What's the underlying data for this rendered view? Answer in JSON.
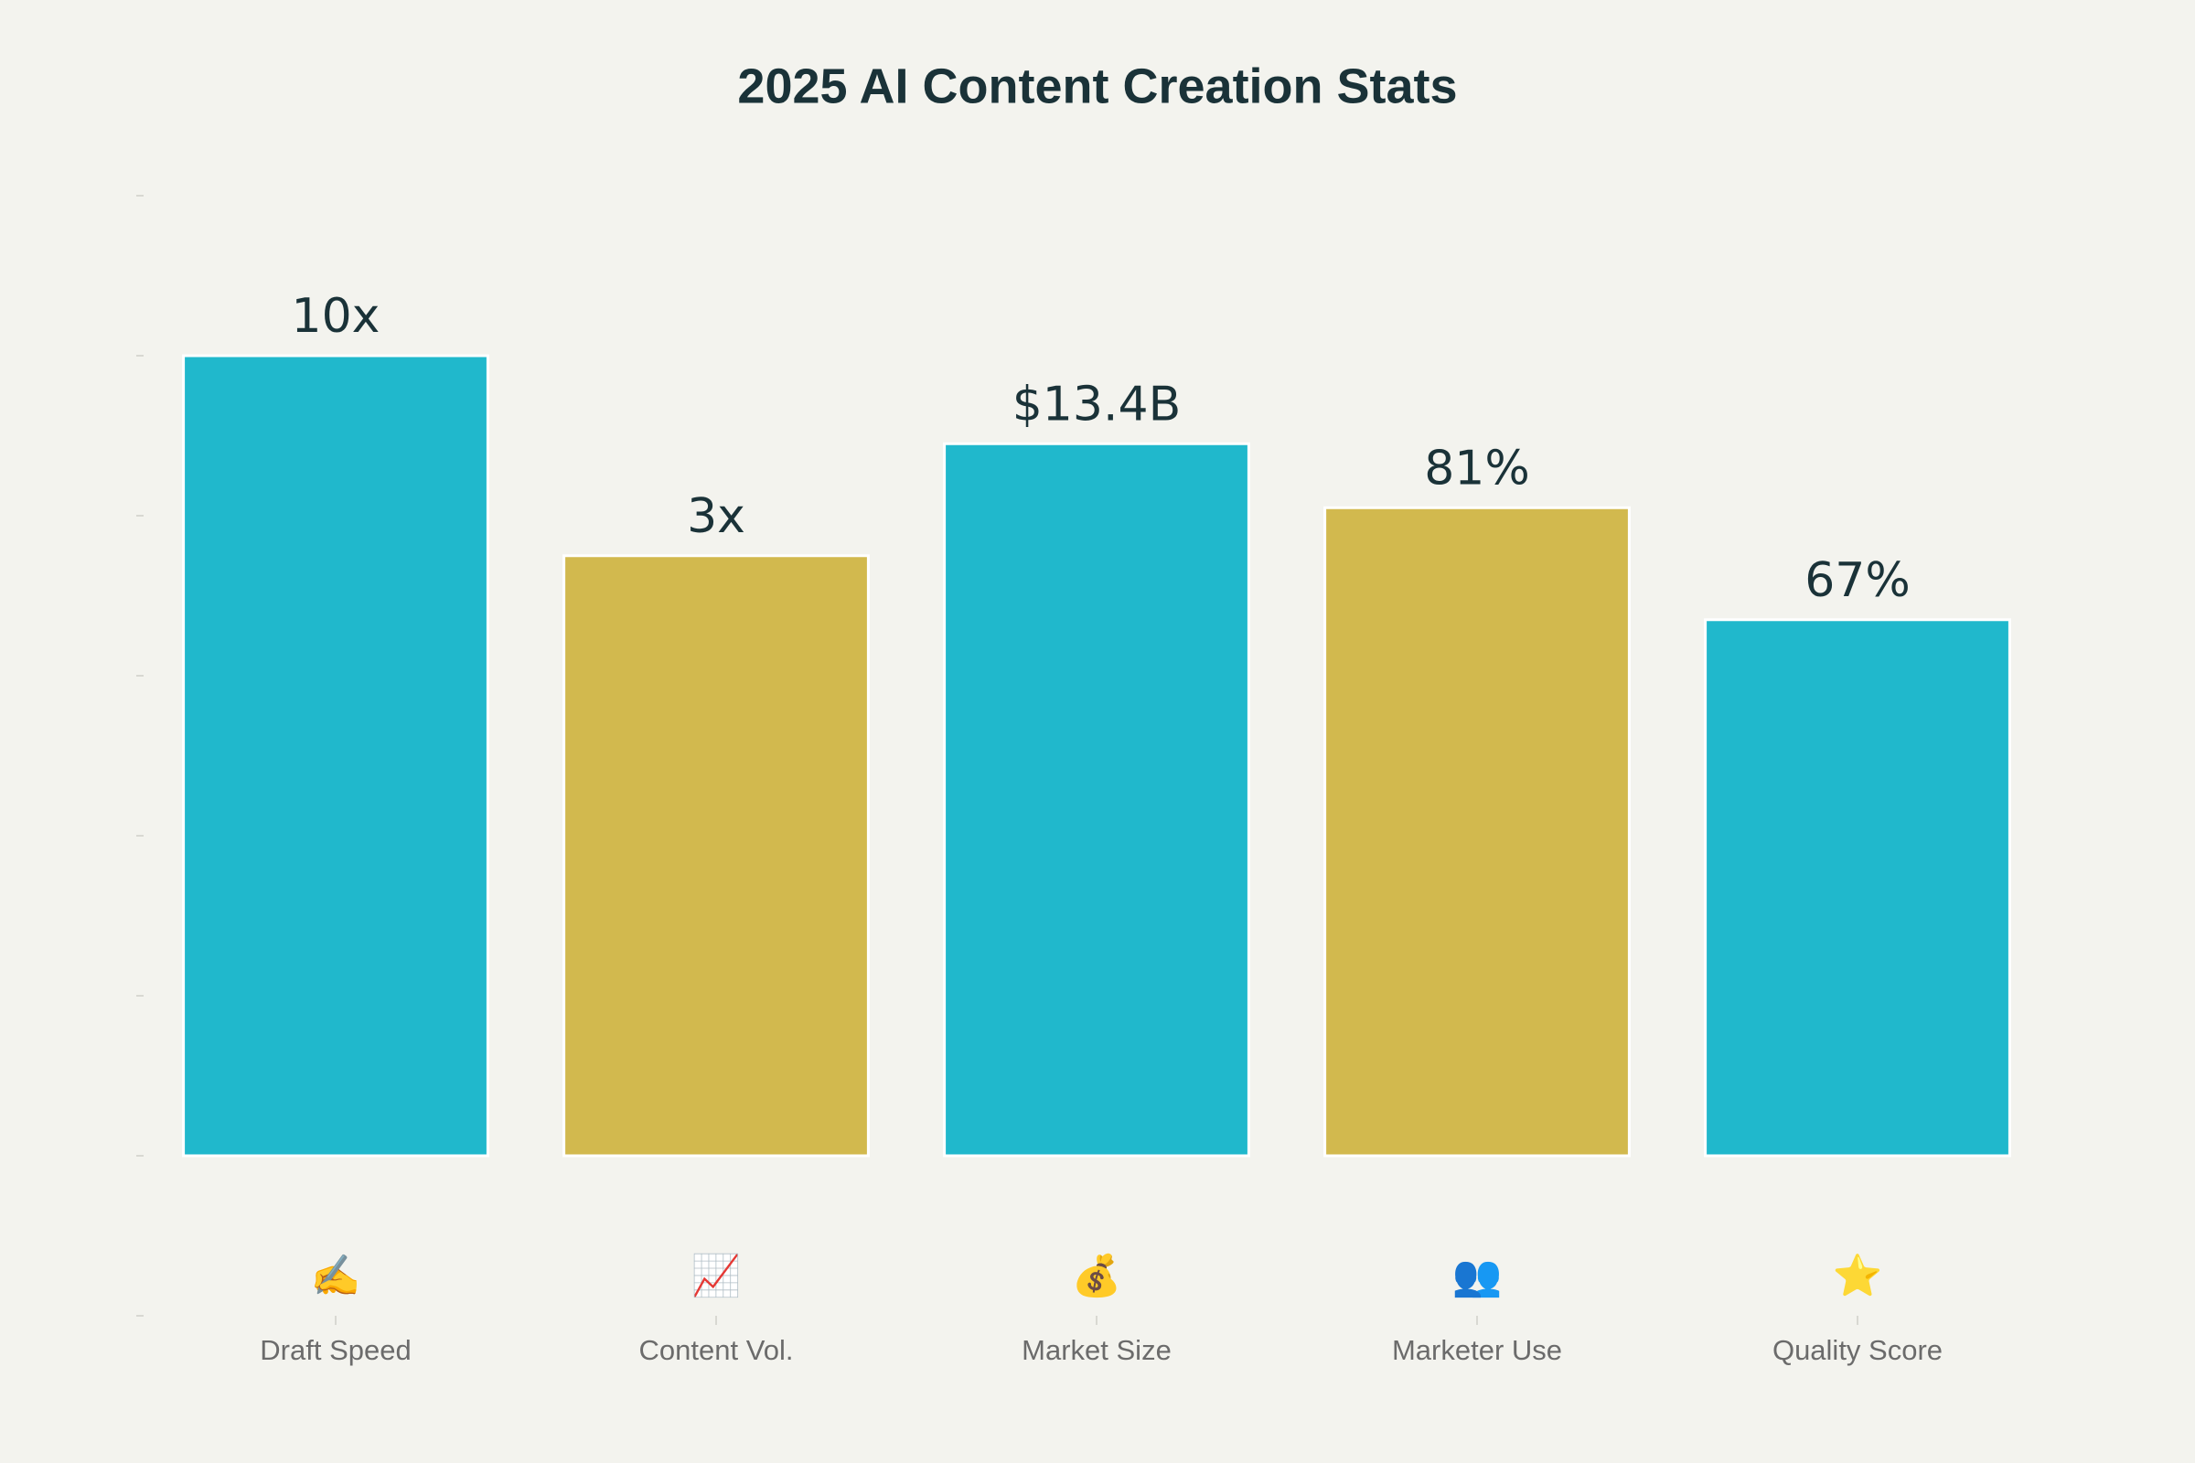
{
  "chart_data": {
    "type": "bar",
    "title": "2025 AI Content Creation Stats",
    "categories": [
      "Draft Speed",
      "Content Vol.",
      "Market Size",
      "Marketer Use",
      "Quality Score"
    ],
    "icons": [
      "✍️",
      "📈",
      "💰",
      "👥",
      "⭐"
    ],
    "values": [
      100,
      75,
      89,
      81,
      67
    ],
    "annotations": [
      "10x",
      "3x",
      "$13.4B",
      "81%",
      "67%"
    ],
    "colors": [
      "#20b8cc",
      "#d2b94e",
      "#20b8cc",
      "#d2b94e",
      "#20b8cc"
    ],
    "ylim": [
      -20,
      120
    ],
    "yticks": [
      -20,
      0,
      20,
      40,
      60,
      80,
      100,
      120
    ],
    "grid": false
  }
}
